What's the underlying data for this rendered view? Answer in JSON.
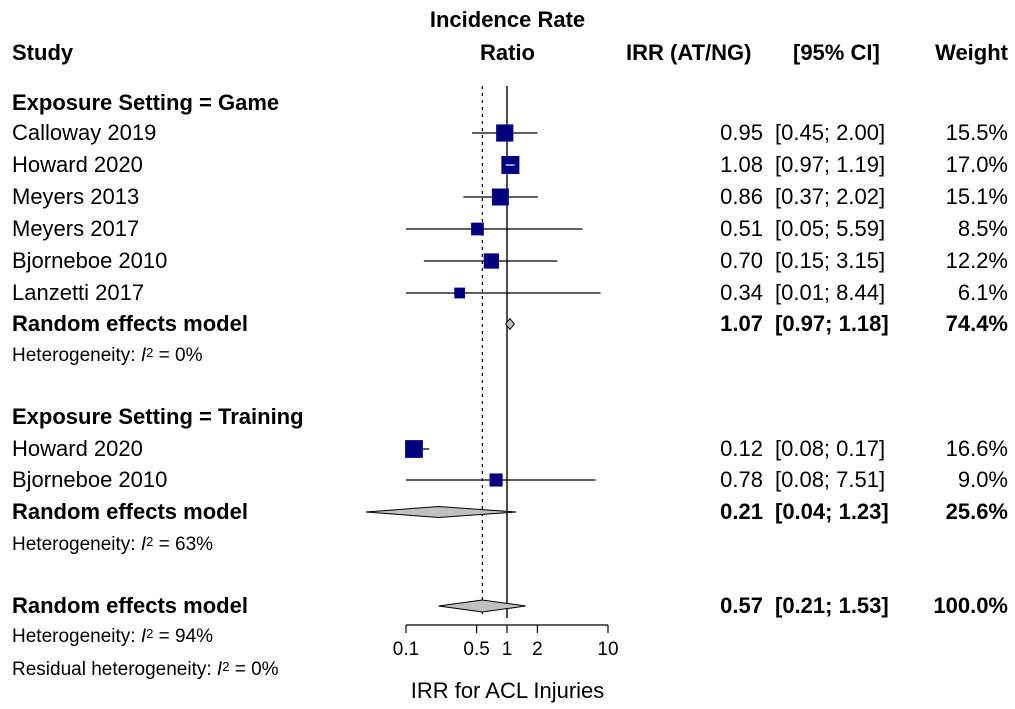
{
  "header": {
    "study": "Study",
    "plot_title_line1": "Incidence Rate",
    "plot_title_line2": "Ratio",
    "irr_col": "IRR (AT/NG)",
    "ci_col": "[95% CI]",
    "weight_col": "Weight"
  },
  "colors": {
    "box": "#00007f",
    "diamond": "#c0c0c0",
    "line": "#000000"
  },
  "chart_data": {
    "type": "forest",
    "xlabel": "IRR for ACL Injuries",
    "x_scale": "log",
    "xlim": [
      0.1,
      10
    ],
    "xticks": [
      "0.1",
      "0.5",
      "1",
      "2",
      "10"
    ],
    "xtick_values": [
      0.1,
      0.5,
      1,
      2,
      10
    ],
    "null_line": 1,
    "overall_line": 0.57,
    "groups": [
      {
        "label": "Exposure Setting = Game",
        "studies": [
          {
            "study": "Calloway 2019",
            "irr": 0.95,
            "lo": 0.45,
            "hi": 2.0,
            "irr_text": "0.95",
            "ci_text": "[0.45; 2.00]",
            "weight_text": "15.5%",
            "weight": 15.5
          },
          {
            "study": "Howard 2020",
            "irr": 1.08,
            "lo": 0.97,
            "hi": 1.19,
            "irr_text": "1.08",
            "ci_text": "[0.97; 1.19]",
            "weight_text": "17.0%",
            "weight": 17.0
          },
          {
            "study": "Meyers 2013",
            "irr": 0.86,
            "lo": 0.37,
            "hi": 2.02,
            "irr_text": "0.86",
            "ci_text": "[0.37; 2.02]",
            "weight_text": "15.1%",
            "weight": 15.1
          },
          {
            "study": "Meyers 2017",
            "irr": 0.51,
            "lo": 0.05,
            "hi": 5.59,
            "irr_text": "0.51",
            "ci_text": "[0.05; 5.59]",
            "weight_text": "8.5%",
            "weight": 8.5
          },
          {
            "study": "Bjorneboe 2010",
            "irr": 0.7,
            "lo": 0.15,
            "hi": 3.15,
            "irr_text": "0.70",
            "ci_text": "[0.15; 3.15]",
            "weight_text": "12.2%",
            "weight": 12.2
          },
          {
            "study": "Lanzetti 2017",
            "irr": 0.34,
            "lo": 0.01,
            "hi": 8.44,
            "irr_text": "0.34",
            "ci_text": "[0.01; 8.44]",
            "weight_text": "6.1%",
            "weight": 6.1
          }
        ],
        "model": {
          "label": "Random effects model",
          "irr": 1.07,
          "lo": 0.97,
          "hi": 1.18,
          "irr_text": "1.07",
          "ci_text": "[0.97; 1.18]",
          "weight_text": "74.4%"
        },
        "heterogeneity": {
          "prefix": "Heterogeneity: ",
          "symbol": "I",
          "sup": "2",
          "value": " = 0%"
        }
      },
      {
        "label": "Exposure Setting = Training",
        "studies": [
          {
            "study": "Howard 2020",
            "irr": 0.12,
            "lo": 0.08,
            "hi": 0.17,
            "irr_text": "0.12",
            "ci_text": "[0.08; 0.17]",
            "weight_text": "16.6%",
            "weight": 16.6
          },
          {
            "study": "Bjorneboe 2010",
            "irr": 0.78,
            "lo": 0.08,
            "hi": 7.51,
            "irr_text": "0.78",
            "ci_text": "[0.08; 7.51]",
            "weight_text": "9.0%",
            "weight": 9.0
          }
        ],
        "model": {
          "label": "Random effects model",
          "irr": 0.21,
          "lo": 0.04,
          "hi": 1.23,
          "irr_text": "0.21",
          "ci_text": "[0.04; 1.23]",
          "weight_text": "25.6%"
        },
        "heterogeneity": {
          "prefix": "Heterogeneity: ",
          "symbol": "I",
          "sup": "2",
          "value": " = 63%"
        }
      }
    ],
    "overall": {
      "label": "Random effects model",
      "irr": 0.57,
      "lo": 0.21,
      "hi": 1.53,
      "irr_text": "0.57",
      "ci_text": "[0.21; 1.53]",
      "weight_text": "100.0%",
      "heterogeneity": {
        "prefix": "Heterogeneity: ",
        "symbol": "I",
        "sup": "2",
        "value": " = 94%"
      },
      "residual": {
        "prefix": "Residual heterogeneity: ",
        "symbol": "I",
        "sup": "2",
        "value": " = 0%"
      }
    }
  }
}
